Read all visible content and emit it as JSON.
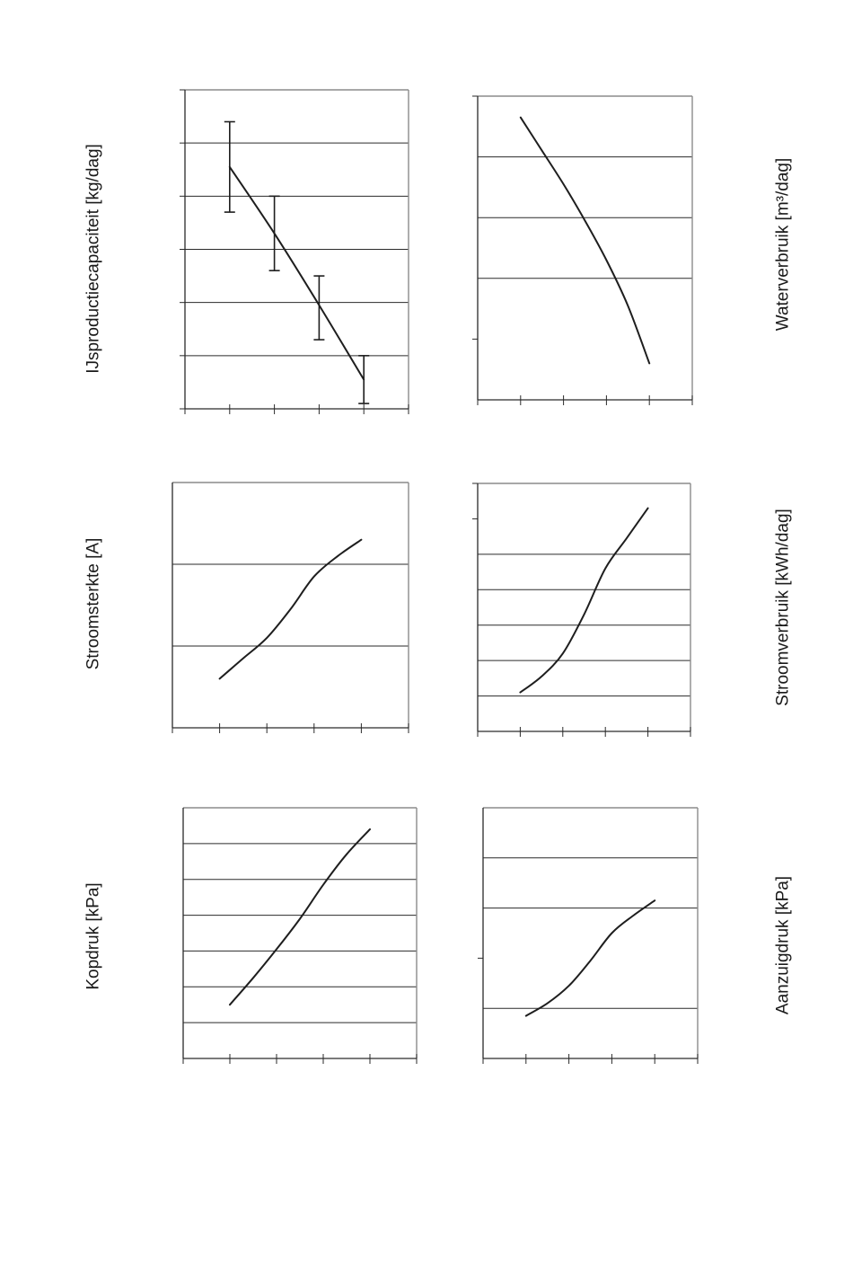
{
  "chart_data": [
    {
      "type": "line",
      "ylabel": "IJsproductiecapaciteit [kg/dag]",
      "series": [
        {
          "x": [
            1,
            2,
            3,
            4
          ],
          "y": [
            4.55,
            3.3,
            1.95,
            0.55
          ],
          "line": "curve"
        }
      ],
      "error_bars": [
        {
          "x": 1,
          "low": 3.7,
          "high": 5.4
        },
        {
          "x": 2,
          "low": 2.6,
          "high": 4.0
        },
        {
          "x": 3,
          "low": 1.3,
          "high": 2.5
        },
        {
          "x": 4,
          "low": 0.1,
          "high": 1.0
        }
      ],
      "ylim": [
        0,
        6
      ],
      "yticks": [
        0,
        1,
        2,
        3,
        4,
        5,
        6
      ],
      "gridlines": [
        1,
        2,
        3,
        4,
        5,
        6
      ],
      "xlim": [
        0,
        5
      ],
      "xticks": [
        0,
        1,
        2,
        3,
        4,
        5
      ],
      "grid": true,
      "border": true
    },
    {
      "type": "line",
      "ylabel": "Waterverbruik [m³/dag]",
      "series": [
        {
          "x": [
            1,
            1.5,
            2,
            2.5,
            3,
            3.5,
            4
          ],
          "y": [
            4.65,
            4.1,
            3.55,
            2.95,
            2.3,
            1.55,
            0.6
          ]
        }
      ],
      "ylim": [
        0,
        5
      ],
      "yticks": [
        1,
        5
      ],
      "gridlines": [
        2,
        3,
        4
      ],
      "xlim": [
        0,
        5
      ],
      "xticks": [
        0,
        1,
        2,
        3,
        4,
        5
      ],
      "grid": true,
      "border": true
    },
    {
      "type": "line",
      "ylabel": "Stroomsterkte [A]",
      "series": [
        {
          "x": [
            1,
            1.5,
            2,
            2.5,
            3,
            3.5,
            4
          ],
          "y": [
            0.6,
            0.85,
            1.1,
            1.45,
            1.85,
            2.1,
            2.3
          ]
        }
      ],
      "ylim": [
        0,
        3
      ],
      "yticks": [],
      "gridlines": [
        1,
        2
      ],
      "xlim": [
        0,
        5
      ],
      "xticks": [
        0,
        1,
        2,
        3,
        4,
        5
      ],
      "grid": true,
      "border": true
    },
    {
      "type": "line",
      "ylabel": "Stroomverbruik [kWh/dag]",
      "series": [
        {
          "x": [
            1,
            1.5,
            2,
            2.5,
            3,
            3.5,
            4
          ],
          "y": [
            1.1,
            1.55,
            2.2,
            3.3,
            4.6,
            5.45,
            6.3
          ]
        }
      ],
      "ylim": [
        0,
        7
      ],
      "yticks": [
        6,
        7
      ],
      "gridlines": [
        1,
        2,
        3,
        4,
        5
      ],
      "xlim": [
        0,
        5
      ],
      "xticks": [
        0,
        1,
        2,
        3,
        4,
        5
      ],
      "grid": true,
      "border": true
    },
    {
      "type": "line",
      "ylabel": "Kopdruk [kPa]",
      "series": [
        {
          "x": [
            1,
            1.5,
            2,
            2.5,
            3,
            3.5,
            4
          ],
          "y": [
            1.5,
            2.25,
            3.05,
            3.9,
            4.85,
            5.7,
            6.4
          ]
        }
      ],
      "ylim": [
        0,
        7
      ],
      "yticks": [],
      "gridlines": [
        1,
        2,
        3,
        4,
        5,
        6
      ],
      "xlim": [
        0,
        5
      ],
      "xticks": [
        0,
        1,
        2,
        3,
        4,
        5
      ],
      "grid": true,
      "border": true
    },
    {
      "type": "line",
      "ylabel": "Aanzuigdruk [kPa]",
      "series": [
        {
          "x": [
            1,
            1.5,
            2,
            2.5,
            3,
            3.5,
            4
          ],
          "y": [
            0.85,
            1.1,
            1.45,
            1.95,
            2.5,
            2.85,
            3.15
          ]
        }
      ],
      "ylim": [
        0,
        5
      ],
      "yticks": [
        2
      ],
      "gridlines": [
        1,
        3,
        4
      ],
      "xlim": [
        0,
        5
      ],
      "xticks": [
        0,
        1,
        2,
        3,
        4,
        5
      ],
      "grid": true,
      "border": true
    }
  ]
}
